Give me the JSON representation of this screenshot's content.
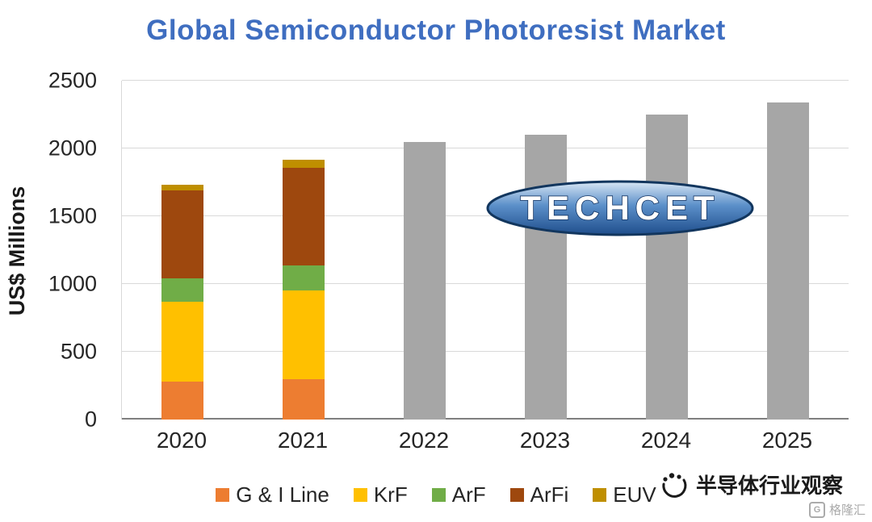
{
  "title": "Global Semiconductor Photoresist Market",
  "logo": {
    "text": "TECHCET"
  },
  "watermark": {
    "text": "半导体行业观察",
    "corner_text": "格隆汇"
  },
  "chart_data": {
    "type": "bar",
    "stacked": true,
    "title": "Global Semiconductor Photoresist Market",
    "xlabel": "",
    "ylabel": "US$ Millions",
    "categories": [
      "2020",
      "2021",
      "2022",
      "2023",
      "2024",
      "2025"
    ],
    "series": [
      {
        "name": "G & I Line",
        "color": "#ED7D31",
        "values": [
          280,
          300,
          0,
          0,
          0,
          0
        ]
      },
      {
        "name": "KrF",
        "color": "#FFC000",
        "values": [
          590,
          650,
          0,
          0,
          0,
          0
        ]
      },
      {
        "name": "ArF",
        "color": "#70AD47",
        "values": [
          170,
          190,
          0,
          0,
          0,
          0
        ]
      },
      {
        "name": "ArFi",
        "color": "#9E480E",
        "values": [
          650,
          720,
          0,
          0,
          0,
          0
        ]
      },
      {
        "name": "EUV",
        "color": "#BF8F00",
        "values": [
          45,
          55,
          0,
          0,
          0,
          0
        ]
      }
    ],
    "forecast": {
      "name": "Forecast total",
      "color": "#A6A6A6",
      "values": [
        0,
        0,
        2050,
        2100,
        2250,
        2340
      ]
    },
    "ylim": [
      0,
      2500
    ],
    "yticks": [
      0,
      500,
      1000,
      1500,
      2000,
      2500
    ],
    "grid": true,
    "legend_position": "bottom"
  }
}
